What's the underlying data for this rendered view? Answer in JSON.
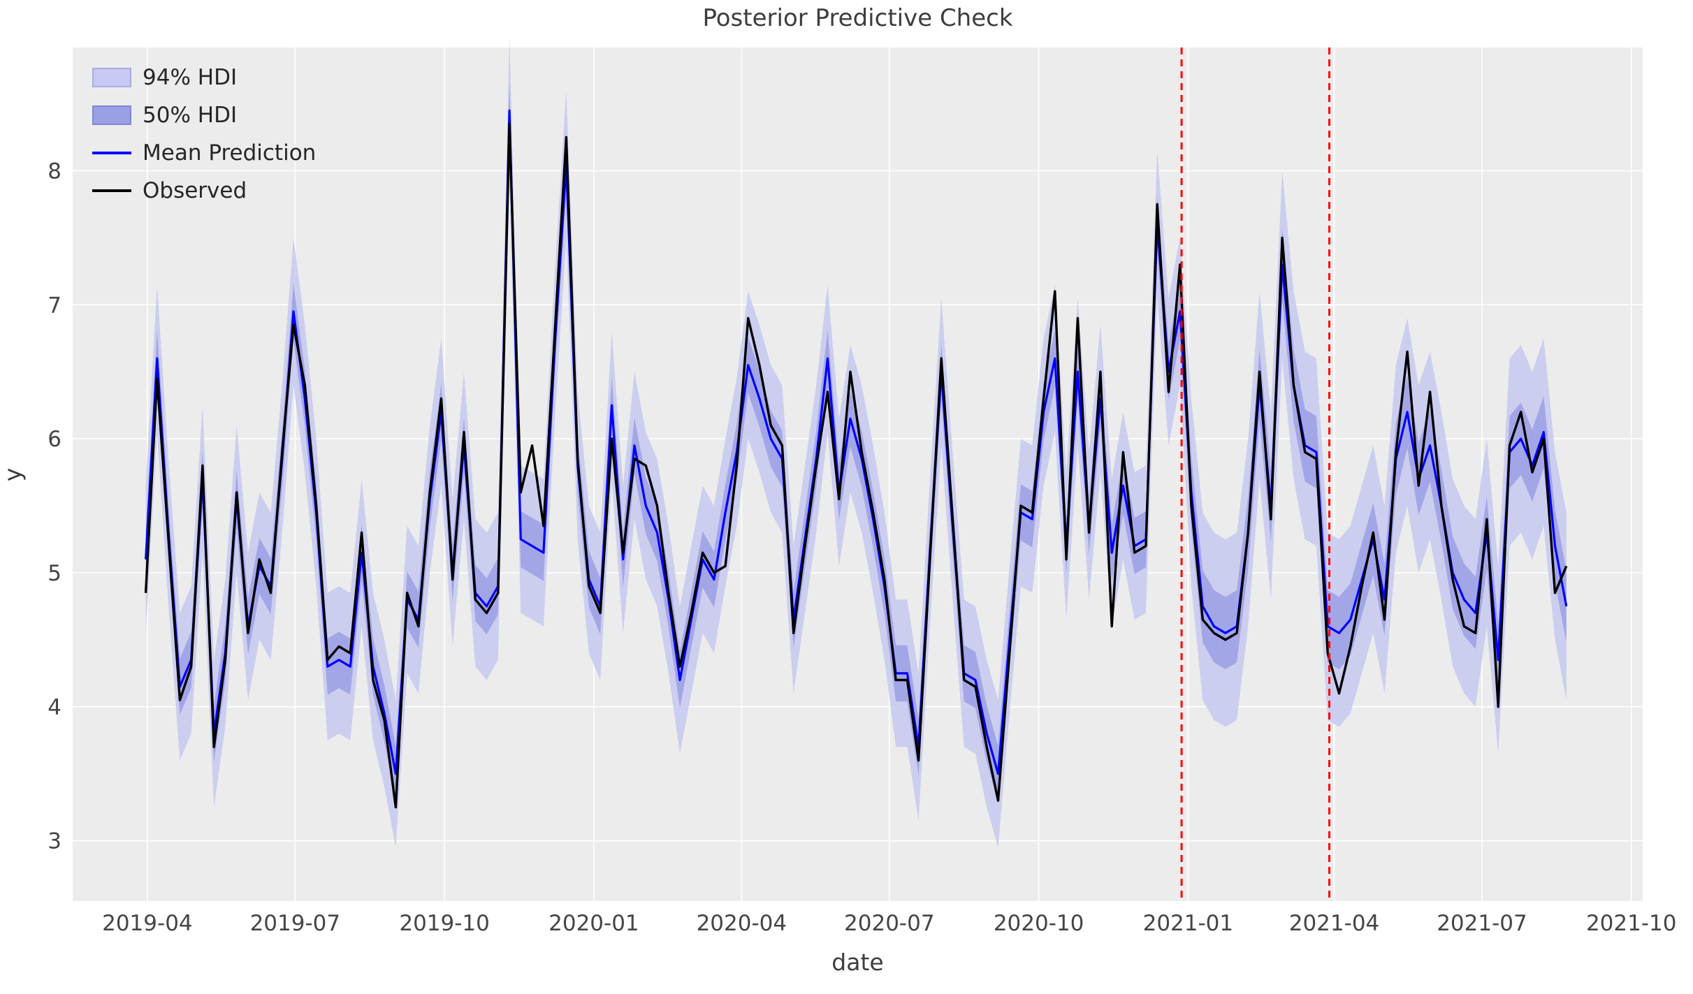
{
  "title": "Posterior Predictive Check",
  "axes": {
    "xlabel": "date",
    "ylabel": "y",
    "yticks": [
      3,
      4,
      5,
      6,
      7,
      8
    ],
    "xticks": [
      {
        "label": "2019-04",
        "date": "2019-04-01"
      },
      {
        "label": "2019-07",
        "date": "2019-07-01"
      },
      {
        "label": "2019-10",
        "date": "2019-10-01"
      },
      {
        "label": "2020-01",
        "date": "2020-01-01"
      },
      {
        "label": "2020-04",
        "date": "2020-04-01"
      },
      {
        "label": "2020-07",
        "date": "2020-07-01"
      },
      {
        "label": "2020-10",
        "date": "2020-10-01"
      },
      {
        "label": "2021-01",
        "date": "2021-01-01"
      },
      {
        "label": "2021-04",
        "date": "2021-04-01"
      },
      {
        "label": "2021-07",
        "date": "2021-07-01"
      },
      {
        "label": "2021-10",
        "date": "2021-10-01"
      }
    ]
  },
  "legend": {
    "items": [
      {
        "label": "94% HDI",
        "type": "band",
        "color": "#c7c9f0",
        "border": "#a9ace6"
      },
      {
        "label": "50% HDI",
        "type": "band",
        "color": "#9b9fe4",
        "border": "#8185d6"
      },
      {
        "label": "Mean Prediction",
        "type": "line",
        "color": "#0000ff"
      },
      {
        "label": "Observed",
        "type": "line",
        "color": "#000000"
      }
    ]
  },
  "chart_data": {
    "type": "line",
    "x_start_date": "2019-03-31",
    "x_freq_days": 7,
    "xlim": [
      "2019-02-14",
      "2021-10-08"
    ],
    "ylim": [
      2.55,
      8.92
    ],
    "grid": true,
    "legend_position": "upper left",
    "series": [
      {
        "name": "Observed",
        "color": "#000000",
        "values": [
          4.85,
          6.45,
          5.25,
          4.05,
          4.3,
          5.8,
          3.7,
          4.35,
          5.6,
          4.55,
          5.1,
          4.85,
          5.9,
          6.85,
          6.4,
          5.5,
          4.35,
          4.45,
          4.4,
          5.3,
          4.2,
          3.9,
          3.25,
          4.85,
          4.6,
          5.6,
          6.3,
          4.95,
          6.05,
          4.8,
          4.7,
          4.85,
          8.35,
          5.6,
          5.95,
          5.35,
          6.8,
          8.25,
          5.85,
          4.9,
          4.7,
          6.0,
          5.15,
          5.85,
          5.8,
          5.5,
          4.85,
          4.3,
          4.7,
          5.15,
          5.0,
          5.05,
          5.8,
          6.9,
          6.55,
          6.1,
          5.95,
          4.55,
          5.2,
          5.8,
          6.35,
          5.55,
          6.5,
          5.9,
          5.45,
          4.95,
          4.2,
          4.2,
          3.6,
          5.1,
          6.6,
          5.4,
          4.2,
          4.15,
          3.7,
          3.3,
          4.4,
          5.5,
          5.45,
          6.3,
          7.1,
          5.1,
          6.9,
          5.3,
          6.5,
          4.6,
          5.9,
          5.15,
          5.2,
          7.75,
          6.35,
          7.3,
          5.5,
          4.65,
          4.55,
          4.5,
          4.55,
          5.3,
          6.5,
          5.4,
          7.5,
          6.4,
          5.9,
          5.85,
          4.4,
          4.1,
          4.45,
          4.9,
          5.3,
          4.65,
          5.9,
          6.65,
          5.65,
          6.35,
          5.5,
          4.95,
          4.6,
          4.55,
          5.4,
          4.0,
          5.95,
          6.2,
          5.75,
          6.0,
          4.85,
          5.05
        ]
      },
      {
        "name": "Mean Prediction",
        "color": "#0000ff",
        "values": [
          5.1,
          6.6,
          5.3,
          4.15,
          4.35,
          5.7,
          3.8,
          4.4,
          5.55,
          4.6,
          5.05,
          4.9,
          5.85,
          6.95,
          6.3,
          5.45,
          4.3,
          4.35,
          4.3,
          5.15,
          4.3,
          3.95,
          3.5,
          4.8,
          4.65,
          5.55,
          6.2,
          5.0,
          5.95,
          4.85,
          4.75,
          4.9,
          8.45,
          5.25,
          5.2,
          5.15,
          6.7,
          8.05,
          5.8,
          4.95,
          4.75,
          6.25,
          5.1,
          5.95,
          5.5,
          5.3,
          4.8,
          4.2,
          4.65,
          5.1,
          4.95,
          5.45,
          5.9,
          6.55,
          6.3,
          6.0,
          5.85,
          4.65,
          5.25,
          5.85,
          6.6,
          5.6,
          6.15,
          5.85,
          5.4,
          4.9,
          4.25,
          4.25,
          3.7,
          5.15,
          6.5,
          5.35,
          4.25,
          4.2,
          3.8,
          3.5,
          4.5,
          5.45,
          5.4,
          6.2,
          6.6,
          5.2,
          6.5,
          5.35,
          6.3,
          5.15,
          5.65,
          5.2,
          5.25,
          7.6,
          6.5,
          6.95,
          5.6,
          4.75,
          4.6,
          4.55,
          4.6,
          5.3,
          6.4,
          5.5,
          7.3,
          6.4,
          5.95,
          5.9,
          4.6,
          4.55,
          4.65,
          4.95,
          5.25,
          4.8,
          5.85,
          6.2,
          5.7,
          5.95,
          5.5,
          5.0,
          4.8,
          4.7,
          5.3,
          4.35,
          5.9,
          6.0,
          5.8,
          6.05,
          5.2,
          4.75
        ]
      }
    ],
    "bands": [
      {
        "name": "94% HDI",
        "around": "Mean Prediction",
        "halfwidth_before_split": 0.55,
        "halfwidth_after_split": 0.7,
        "color": "#c7c9f0",
        "opacity": 0.85
      },
      {
        "name": "50% HDI",
        "around": "Mean Prediction",
        "halfwidth_before_split": 0.21,
        "halfwidth_after_split": 0.27,
        "color": "#9b9fe4",
        "opacity": 0.85
      }
    ],
    "band_split_date": "2020-12-28",
    "vlines": [
      {
        "date": "2020-12-28",
        "color": "#ff0000",
        "style": "dashed"
      },
      {
        "date": "2021-03-29",
        "color": "#ff0000",
        "style": "dashed"
      }
    ],
    "colors": {
      "background": "#ececec",
      "grid": "#ffffff",
      "mean": "#0000ff",
      "observed": "#000000",
      "vline": "#ff0000",
      "text": "#3d3d3d",
      "tick_text": "#454545"
    }
  }
}
